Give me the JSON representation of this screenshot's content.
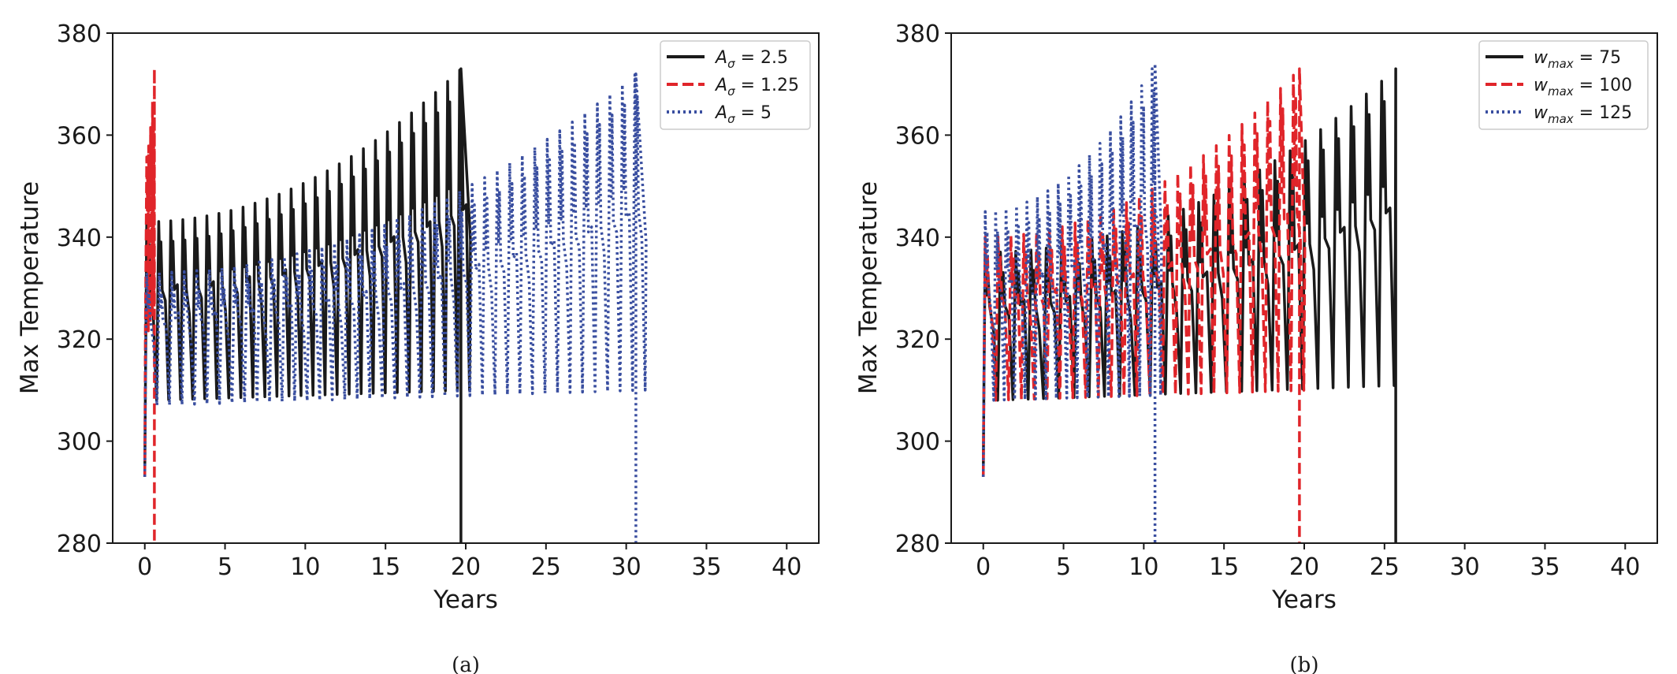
{
  "chart_data": [
    {
      "panel": "a",
      "type": "line",
      "caption": "(a)",
      "title": "",
      "xlabel": "Years",
      "ylabel": "Max Temperature",
      "xlim": [
        -2,
        42
      ],
      "ylim": [
        280,
        380
      ],
      "xticks": [
        0,
        5,
        10,
        15,
        20,
        25,
        30,
        35,
        40
      ],
      "yticks": [
        280,
        300,
        320,
        340,
        360,
        380
      ],
      "grid": false,
      "legend": {
        "placement": "top-right",
        "entries": [
          {
            "base": "A",
            "sub": "σ",
            "rest": " = 2.5"
          },
          {
            "base": "A",
            "sub": "σ",
            "rest": " = 1.25"
          },
          {
            "base": "A",
            "sub": "σ",
            "rest": " = 5"
          }
        ]
      },
      "series": [
        {
          "name": "Aσ = 2.5",
          "color": "#1a1a1a",
          "style": "solid",
          "start": 293,
          "end_year": 19.7,
          "period_years": 0.75,
          "trough": [
            308,
            310
          ],
          "peak": [
            343,
            373
          ],
          "drop_to": 280
        },
        {
          "name": "Aσ = 1.25",
          "color": "#e0252a",
          "style": "dashed",
          "start": 293,
          "end_year": 0.6,
          "period_years": 0.12,
          "trough": [
            320,
            328
          ],
          "peak": [
            355,
            373
          ],
          "drop_to": 280
        },
        {
          "name": "Aσ = 5",
          "color": "#3a4fa0",
          "style": "dotted",
          "start": 293,
          "end_year": 30.6,
          "period_years": 0.78,
          "trough": [
            307,
            310
          ],
          "peak": [
            333,
            372
          ],
          "drop_to": 280
        }
      ]
    },
    {
      "panel": "b",
      "type": "line",
      "caption": "(b)",
      "title": "",
      "xlabel": "Years",
      "ylabel": "Max Temperature",
      "xlim": [
        -2,
        42
      ],
      "ylim": [
        280,
        380
      ],
      "xticks": [
        0,
        5,
        10,
        15,
        20,
        25,
        30,
        35,
        40
      ],
      "yticks": [
        280,
        300,
        320,
        340,
        360,
        380
      ],
      "grid": false,
      "legend": {
        "placement": "top-right",
        "entries": [
          {
            "base": "w",
            "sub": "max",
            "rest": " = 75"
          },
          {
            "base": "w",
            "sub": "max",
            "rest": " = 100"
          },
          {
            "base": "w",
            "sub": "max",
            "rest": " = 125"
          }
        ]
      },
      "series": [
        {
          "name": "wmax = 75",
          "color": "#1a1a1a",
          "style": "solid",
          "start": 293,
          "end_year": 25.7,
          "period_years": 0.95,
          "trough": [
            308,
            311
          ],
          "peak": [
            337,
            373
          ],
          "drop_to": 280
        },
        {
          "name": "wmax = 100",
          "color": "#e0252a",
          "style": "dashed",
          "start": 293,
          "end_year": 19.7,
          "period_years": 0.8,
          "trough": [
            308,
            310
          ],
          "peak": [
            340,
            373
          ],
          "drop_to": 280
        },
        {
          "name": "wmax = 125",
          "color": "#3a4fa0",
          "style": "dotted",
          "start": 293,
          "end_year": 10.7,
          "period_years": 0.65,
          "trough": [
            308,
            309
          ],
          "peak": [
            345,
            374
          ],
          "drop_to": 280
        }
      ]
    }
  ]
}
